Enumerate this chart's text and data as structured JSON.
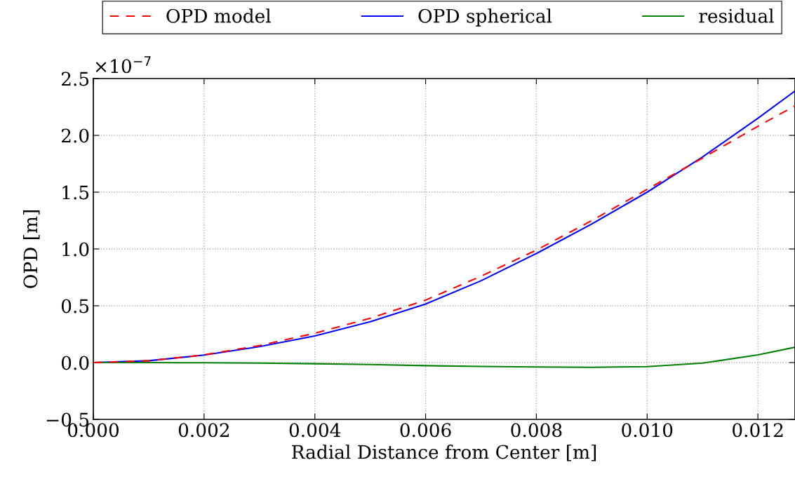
{
  "chart_data": {
    "type": "line",
    "xlabel": "Radial Distance from Center [m]",
    "ylabel": "OPD [m]",
    "annotations": [
      "×10$^{−7}$"
    ],
    "x": [
      0,
      0.001,
      0.002,
      0.003,
      0.004,
      0.005,
      0.006,
      0.007,
      0.008,
      0.009,
      0.01,
      0.011,
      0.012,
      0.01267
    ],
    "series": [
      {
        "name": "OPD model",
        "color": "#ff0000",
        "line_style": "dashed",
        "values": [
          0,
          0.016,
          0.068,
          0.15,
          0.258,
          0.39,
          0.55,
          0.76,
          0.99,
          1.25,
          1.525,
          1.8,
          2.08,
          2.26
        ]
      },
      {
        "name": "OPD spherical",
        "color": "#0000ff",
        "line_style": "solid",
        "values": [
          0,
          0.016,
          0.066,
          0.14,
          0.234,
          0.36,
          0.515,
          0.72,
          0.96,
          1.22,
          1.5,
          1.81,
          2.15,
          2.39
        ]
      },
      {
        "name": "residual",
        "color": "#008000",
        "line_style": "solid",
        "values": [
          0,
          0,
          -0.002,
          -0.005,
          -0.01,
          -0.017,
          -0.027,
          -0.034,
          -0.039,
          -0.042,
          -0.035,
          -0.005,
          0.068,
          0.135
        ]
      }
    ],
    "xlim": [
      0,
      0.01267
    ],
    "xticks": [
      {
        "value": 0,
        "label": "0.000"
      },
      {
        "value": 0.002,
        "label": "0.002"
      },
      {
        "value": 0.004,
        "label": "0.004"
      },
      {
        "value": 0.006,
        "label": "0.006"
      },
      {
        "value": 0.008,
        "label": "0.008"
      },
      {
        "value": 0.01,
        "label": "0.010"
      },
      {
        "value": 0.012,
        "label": "0.012"
      }
    ],
    "ylim": [
      -0.5,
      2.5
    ],
    "yticks": [
      {
        "value": -0.5,
        "label": "−0.5"
      },
      {
        "value": 0,
        "label": "0.0"
      },
      {
        "value": 0.5,
        "label": "0.5"
      },
      {
        "value": 1,
        "label": "1.0"
      },
      {
        "value": 1.5,
        "label": "1.5"
      },
      {
        "value": 2,
        "label": "2.0"
      },
      {
        "value": 2.5,
        "label": "2.5"
      }
    ],
    "grid": true,
    "legend": "top",
    "marker": "none"
  }
}
